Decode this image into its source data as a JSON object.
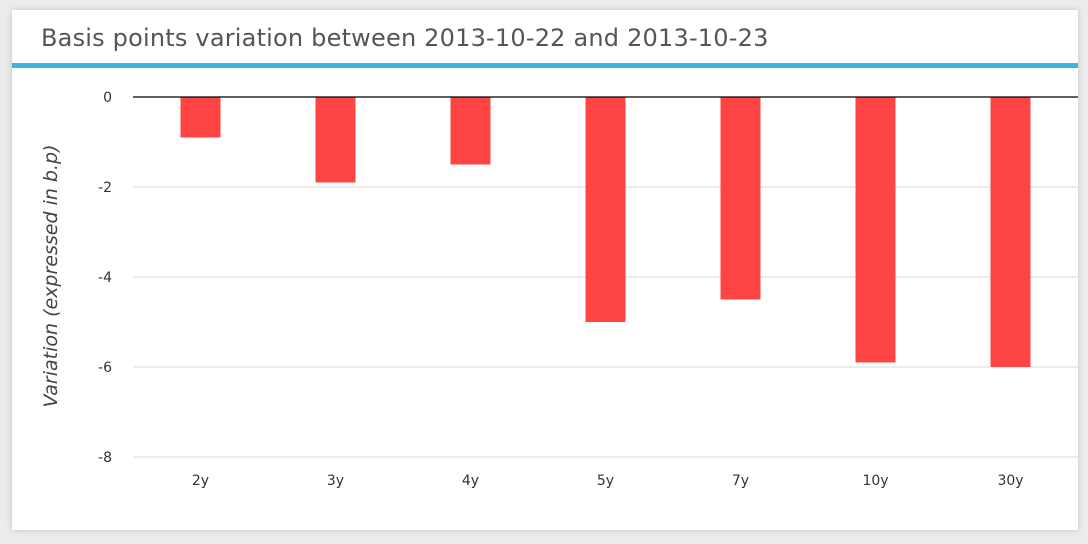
{
  "panel": {
    "title": "Basis points variation between 2013-10-22 and 2013-10-23"
  },
  "colors": {
    "bar": "#ff4444",
    "header_rule": "#3cb4dc",
    "grid": "#d8d8d8",
    "zero_line": "#000000"
  },
  "chart_data": {
    "type": "bar",
    "title": "Basis points variation between 2013-10-22 and 2013-10-23",
    "xlabel": "",
    "ylabel": "Variation (expressed in b.p)",
    "categories": [
      "2y",
      "3y",
      "4y",
      "5y",
      "7y",
      "10y",
      "30y"
    ],
    "values": [
      -0.9,
      -1.9,
      -1.5,
      -5.0,
      -4.5,
      -5.9,
      -6.0
    ],
    "ylim": [
      -8,
      0
    ],
    "yticks": [
      0,
      -2,
      -4,
      -6,
      -8
    ],
    "grid": true,
    "legend": "none"
  }
}
